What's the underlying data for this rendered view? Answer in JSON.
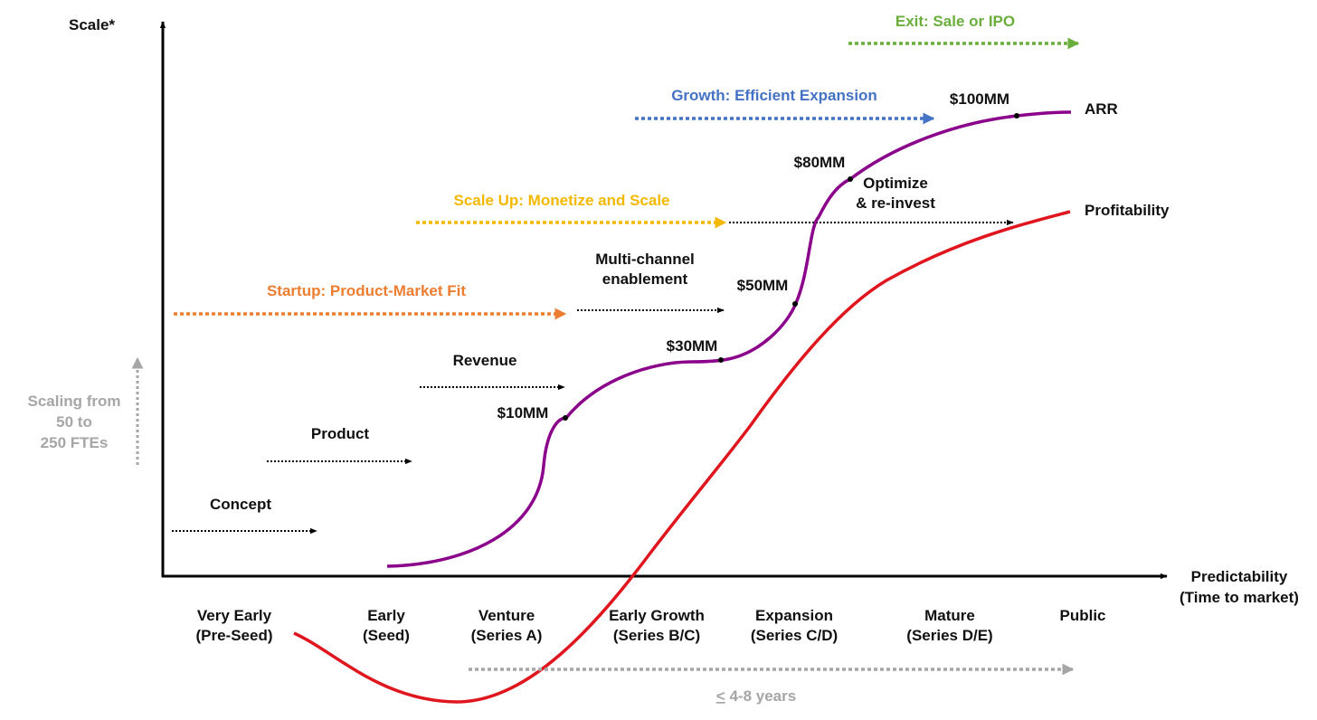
{
  "colors": {
    "axis": "#000000",
    "text": "#111111",
    "arr_curve": "#8B008B",
    "profit_curve": "#E0161E",
    "startup": "#ED7D31",
    "scaleup": "#F5B800",
    "growth": "#4472C4",
    "exit": "#6AAE3C",
    "muted": "#A6A6A6",
    "dotted_arrow": "#000000"
  },
  "axes": {
    "y_label": "Scale*",
    "x_label_line1": "Predictability",
    "x_label_line2": "(Time to market)"
  },
  "side_note": {
    "line1": "Scaling from",
    "line2": "50 to",
    "line3": "250 FTEs"
  },
  "phases": {
    "startup": "Startup: Product-Market Fit",
    "scaleup": "Scale Up: Monetize and Scale",
    "growth": "Growth: Efficient Expansion",
    "exit": "Exit: Sale or IPO"
  },
  "activities": {
    "concept": "Concept",
    "product": "Product",
    "revenue": "Revenue",
    "multichannel_line1": "Multi-channel",
    "multichannel_line2": "enablement",
    "optimize_line1": "Optimize",
    "optimize_line2": "& re-invest"
  },
  "milestones": [
    "$10MM",
    "$30MM",
    "$50MM",
    "$80MM",
    "$100MM"
  ],
  "curve_labels": {
    "arr": "ARR",
    "profitability": "Profitability"
  },
  "stages": [
    {
      "line1": "Very Early",
      "line2": "(Pre-Seed)"
    },
    {
      "line1": "Early",
      "line2": "(Seed)"
    },
    {
      "line1": "Venture",
      "line2": "(Series A)"
    },
    {
      "line1": "Early Growth",
      "line2": "(Series B/C)"
    },
    {
      "line1": "Expansion",
      "line2": "(Series C/D)"
    },
    {
      "line1": "Mature",
      "line2": "(Series D/E)"
    },
    {
      "line1": "Public",
      "line2": ""
    }
  ],
  "timeline": {
    "symbol": "<",
    "label": " 4-8 years"
  }
}
